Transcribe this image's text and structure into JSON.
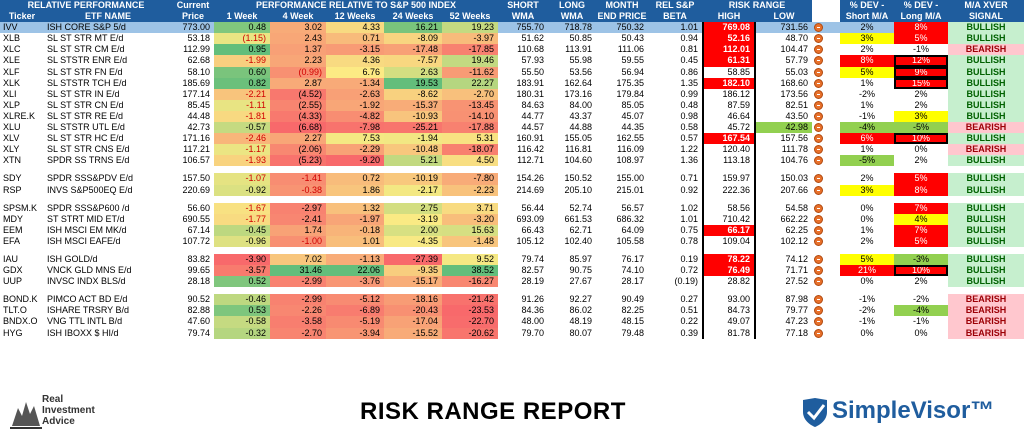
{
  "header": {
    "group1": "RELATIVE PERFORMANCE",
    "current": "Current",
    "perf_group": "PERFORMANCE RELATIVE TO S&P 500 INDEX",
    "short": "SHORT",
    "long": "LONG",
    "month": "MONTH",
    "rel_sp": "REL S&P",
    "risk_range": "RISK RANGE",
    "dev_short": "% DEV -",
    "dev_long": "% DEV -",
    "ma_xver": "M/A XVER",
    "ticker": "Ticker",
    "etf_name": "ETF NAME",
    "price": "Price",
    "w1": "1 Week",
    "w4": "4 Week",
    "w12": "12 Weeks",
    "w24": "24 Weeks",
    "w52": "52 Weeks",
    "wma_s": "WMA",
    "wma_l": "WMA",
    "end_price": "END PRICE",
    "beta": "BETA",
    "high": "HIGH",
    "low": "LOW",
    "short_ma": "Short M/A",
    "long_ma": "Long M/A",
    "signal": "SIGNAL"
  },
  "colors": {
    "header_blue": "#1f5d9e",
    "bull_bg": "#c6efce",
    "bear_bg": "#ffc7ce",
    "red_cell": "#ff0000",
    "yellow_cell": "#ffff00"
  },
  "rows": [
    {
      "t": "IVV",
      "n": "ISH CORE S&P 5/d",
      "p": "773.00",
      "w1": "0.48",
      "w4": "3.02",
      "w12": "4.33",
      "w24": "16.21",
      "w52": "19.23",
      "s": "755.70",
      "l": "718.78",
      "m": "750.32",
      "b": "1.01",
      "hi": "769.08",
      "lo": "731.56",
      "ds": "2%",
      "dl": "8%",
      "sig": "BULLISH"
    },
    {
      "t": "XLB",
      "n": "SL ST STR MT E/d",
      "p": "53.18",
      "w1": "(1.15)",
      "w4": "2.43",
      "w12": "0.71",
      "w24": "-8.09",
      "w52": "-3.97",
      "s": "51.62",
      "l": "50.85",
      "m": "50.43",
      "b": "0.94",
      "hi": "52.16",
      "lo": "48.70",
      "ds": "3%",
      "dl": "5%",
      "sig": "BULLISH"
    },
    {
      "t": "XLC",
      "n": "SL ST STR CM E/d",
      "p": "112.99",
      "w1": "0.95",
      "w4": "1.37",
      "w12": "-3.15",
      "w24": "-17.48",
      "w52": "-17.85",
      "s": "110.68",
      "l": "113.91",
      "m": "111.06",
      "b": "0.81",
      "hi": "112.01",
      "lo": "104.47",
      "ds": "2%",
      "dl": "-1%",
      "sig": "BEARISH"
    },
    {
      "t": "XLE",
      "n": "SL STSTR ENR E/d",
      "p": "62.68",
      "w1": "-1.99",
      "w4": "2.23",
      "w12": "4.36",
      "w24": "-7.57",
      "w52": "19.46",
      "s": "57.93",
      "l": "55.98",
      "m": "59.55",
      "b": "0.45",
      "hi": "61.31",
      "lo": "57.79",
      "ds": "8%",
      "dl": "12%",
      "sig": "BULLISH"
    },
    {
      "t": "XLF",
      "n": "SL ST STR FN E/d",
      "p": "58.10",
      "w1": "0.60",
      "w4": "(0.99)",
      "w12": "6.76",
      "w24": "2.63",
      "w52": "-11.62",
      "s": "55.50",
      "l": "53.56",
      "m": "56.94",
      "b": "0.86",
      "hi": "58.85",
      "lo": "55.03",
      "ds": "5%",
      "dl": "9%",
      "sig": "BULLISH"
    },
    {
      "t": "XLK",
      "n": "SL STSTR TCH E/d",
      "p": "185.69",
      "w1": "0.82",
      "w4": "2.87",
      "w12": "-1.34",
      "w24": "19.53",
      "w52": "22.27",
      "s": "183.91",
      "l": "162.64",
      "m": "175.35",
      "b": "1.35",
      "hi": "182.10",
      "lo": "168.60",
      "ds": "1%",
      "dl": "15%",
      "sig": "BULLISH"
    },
    {
      "t": "XLI",
      "n": "SL ST STR IN E/d",
      "p": "177.14",
      "w1": "-2.21",
      "w4": "(4.52)",
      "w12": "-2.63",
      "w24": "-8.62",
      "w52": "-2.70",
      "s": "180.31",
      "l": "173.16",
      "m": "179.84",
      "b": "0.99",
      "hi": "186.12",
      "lo": "173.56",
      "ds": "-2%",
      "dl": "2%",
      "sig": "BULLISH"
    },
    {
      "t": "XLP",
      "n": "SL ST STR CN E/d",
      "p": "85.45",
      "w1": "-1.11",
      "w4": "(2.55)",
      "w12": "-1.92",
      "w24": "-15.37",
      "w52": "-13.45",
      "s": "84.63",
      "l": "84.00",
      "m": "85.05",
      "b": "0.48",
      "hi": "87.59",
      "lo": "82.51",
      "ds": "1%",
      "dl": "2%",
      "sig": "BULLISH"
    },
    {
      "t": "XLRE.K",
      "n": "SL ST STR RE E/d",
      "p": "44.48",
      "w1": "-1.81",
      "w4": "(4.33)",
      "w12": "-4.82",
      "w24": "-10.93",
      "w52": "-14.10",
      "s": "44.77",
      "l": "43.37",
      "m": "45.07",
      "b": "0.98",
      "hi": "46.64",
      "lo": "43.50",
      "ds": "-1%",
      "dl": "3%",
      "sig": "BULLISH"
    },
    {
      "t": "XLU",
      "n": "SL STSTR UTL E/d",
      "p": "42.73",
      "w1": "-0.57",
      "w4": "(6.68)",
      "w12": "-7.98",
      "w24": "-25.21",
      "w52": "-17.88",
      "s": "44.57",
      "l": "44.88",
      "m": "44.35",
      "b": "0.58",
      "hi": "45.72",
      "lo": "42.98",
      "ds": "-4%",
      "dl": "-5%",
      "sig": "BEARISH"
    },
    {
      "t": "XLV",
      "n": "SL ST STR HC E/d",
      "p": "171.16",
      "w1": "-2.46",
      "w4": "2.27",
      "w12": "7.53",
      "w24": "-1.94",
      "w52": "5.31",
      "s": "160.91",
      "l": "155.05",
      "m": "162.55",
      "b": "0.57",
      "hi": "167.54",
      "lo": "157.56",
      "ds": "6%",
      "dl": "10%",
      "sig": "BULLISH"
    },
    {
      "t": "XLY",
      "n": "SL ST STR CNS E/d",
      "p": "117.21",
      "w1": "-1.17",
      "w4": "(2.06)",
      "w12": "-2.29",
      "w24": "-10.48",
      "w52": "-18.07",
      "s": "116.42",
      "l": "116.81",
      "m": "116.09",
      "b": "1.22",
      "hi": "120.40",
      "lo": "111.78",
      "ds": "1%",
      "dl": "0%",
      "sig": "BEARISH"
    },
    {
      "t": "XTN",
      "n": "SPDR SS TRNS E/d",
      "p": "106.57",
      "w1": "-1.93",
      "w4": "(5.23)",
      "w12": "-9.20",
      "w24": "5.21",
      "w52": "4.50",
      "s": "112.71",
      "l": "104.60",
      "m": "108.97",
      "b": "1.36",
      "hi": "113.18",
      "lo": "104.76",
      "ds": "-5%",
      "dl": "2%",
      "sig": "BULLISH"
    },
    {
      "gap": true
    },
    {
      "t": "SDY",
      "n": "SPDR SSS&PDV E/d",
      "p": "157.50",
      "w1": "-1.07",
      "w4": "-1.41",
      "w12": "0.72",
      "w24": "-10.19",
      "w52": "-7.80",
      "s": "154.26",
      "l": "150.52",
      "m": "155.00",
      "b": "0.71",
      "hi": "159.97",
      "lo": "150.03",
      "ds": "2%",
      "dl": "5%",
      "sig": "BULLISH"
    },
    {
      "t": "RSP",
      "n": "INVS S&P500EQ E/d",
      "p": "220.69",
      "w1": "-0.92",
      "w4": "-0.38",
      "w12": "1.86",
      "w24": "-2.17",
      "w52": "-2.23",
      "s": "214.69",
      "l": "205.10",
      "m": "215.01",
      "b": "0.92",
      "hi": "222.36",
      "lo": "207.66",
      "ds": "3%",
      "dl": "8%",
      "sig": "BULLISH"
    },
    {
      "gap": true
    },
    {
      "t": "SPSM.K",
      "n": "SPDR SSS&P600 /d",
      "p": "56.60",
      "w1": "-1.67",
      "w4": "-2.97",
      "w12": "1.32",
      "w24": "2.75",
      "w52": "3.71",
      "s": "56.44",
      "l": "52.74",
      "m": "56.57",
      "b": "1.02",
      "hi": "58.56",
      "lo": "54.58",
      "ds": "0%",
      "dl": "7%",
      "sig": "BULLISH"
    },
    {
      "t": "MDY",
      "n": "ST STRT MID ET/d",
      "p": "690.55",
      "w1": "-1.77",
      "w4": "-2.41",
      "w12": "-1.97",
      "w24": "-3.19",
      "w52": "-3.20",
      "s": "693.09",
      "l": "661.53",
      "m": "686.32",
      "b": "1.01",
      "hi": "710.42",
      "lo": "662.22",
      "ds": "0%",
      "dl": "4%",
      "sig": "BULLISH"
    },
    {
      "t": "EEM",
      "n": "ISH MSCI EM MK/d",
      "p": "67.14",
      "w1": "-0.45",
      "w4": "1.74",
      "w12": "-0.18",
      "w24": "2.00",
      "w52": "15.63",
      "s": "66.43",
      "l": "62.71",
      "m": "64.09",
      "b": "0.75",
      "hi": "66.17",
      "lo": "62.25",
      "ds": "1%",
      "dl": "7%",
      "sig": "BULLISH"
    },
    {
      "t": "EFA",
      "n": "ISH MSCI EAFE/d",
      "p": "107.72",
      "w1": "-0.96",
      "w4": "-1.00",
      "w12": "1.01",
      "w24": "-4.35",
      "w52": "-1.48",
      "s": "105.12",
      "l": "102.40",
      "m": "105.58",
      "b": "0.78",
      "hi": "109.04",
      "lo": "102.12",
      "ds": "2%",
      "dl": "5%",
      "sig": "BULLISH"
    },
    {
      "gap": true
    },
    {
      "t": "IAU",
      "n": "ISH GOLD/d",
      "p": "83.82",
      "w1": "-3.90",
      "w4": "7.02",
      "w12": "-1.13",
      "w24": "-27.39",
      "w52": "9.52",
      "s": "79.74",
      "l": "85.97",
      "m": "76.17",
      "b": "0.19",
      "hi": "78.22",
      "lo": "74.12",
      "ds": "5%",
      "dl": "-3%",
      "sig": "BULLISH"
    },
    {
      "t": "GDX",
      "n": "VNCK GLD MNS E/d",
      "p": "99.65",
      "w1": "-3.57",
      "w4": "31.46",
      "w12": "22.06",
      "w24": "-9.35",
      "w52": "38.52",
      "s": "82.57",
      "l": "90.75",
      "m": "74.10",
      "b": "0.72",
      "hi": "76.49",
      "lo": "71.71",
      "ds": "21%",
      "dl": "10%",
      "sig": "BULLISH"
    },
    {
      "t": "UUP",
      "n": "INVSC INDX BLS/d",
      "p": "28.18",
      "w1": "0.52",
      "w4": "-2.99",
      "w12": "-3.76",
      "w24": "-15.17",
      "w52": "-16.27",
      "s": "28.19",
      "l": "27.67",
      "m": "28.17",
      "b": "(0.19)",
      "hi": "28.82",
      "lo": "27.52",
      "ds": "0%",
      "dl": "2%",
      "sig": "BULLISH"
    },
    {
      "gap": true
    },
    {
      "t": "BOND.K",
      "n": "PIMCO ACT BD E/d",
      "p": "90.52",
      "w1": "-0.46",
      "w4": "-2.99",
      "w12": "-5.12",
      "w24": "-18.16",
      "w52": "-21.42",
      "s": "91.26",
      "l": "92.27",
      "m": "90.49",
      "b": "0.27",
      "hi": "93.00",
      "lo": "87.98",
      "ds": "-1%",
      "dl": "-2%",
      "sig": "BEARISH"
    },
    {
      "t": "TLT.O",
      "n": "ISHARE TRSRY B/d",
      "p": "82.88",
      "w1": "0.53",
      "w4": "-2.26",
      "w12": "-6.89",
      "w24": "-20.43",
      "w52": "-23.53",
      "s": "84.36",
      "l": "86.02",
      "m": "82.25",
      "b": "0.51",
      "hi": "84.73",
      "lo": "79.77",
      "ds": "-2%",
      "dl": "-4%",
      "sig": "BEARISH"
    },
    {
      "t": "BNDX.O",
      "n": "VNG TTL INTL B/d",
      "p": "47.60",
      "w1": "-0.58",
      "w4": "-3.58",
      "w12": "-5.19",
      "w24": "-17.04",
      "w52": "-22.70",
      "s": "48.00",
      "l": "48.19",
      "m": "48.15",
      "b": "0.22",
      "hi": "49.07",
      "lo": "47.23",
      "ds": "-1%",
      "dl": "-1%",
      "sig": "BEARISH"
    },
    {
      "t": "HYG",
      "n": "ISH IBOXX $ HI/d",
      "p": "79.74",
      "w1": "-0.32",
      "w4": "-2.70",
      "w12": "-3.94",
      "w24": "-15.52",
      "w52": "-20.62",
      "s": "79.70",
      "l": "80.07",
      "m": "79.48",
      "b": "0.39",
      "hi": "81.78",
      "lo": "77.18",
      "ds": "0%",
      "dl": "0%",
      "sig": "BEARISH"
    }
  ],
  "footer": {
    "title": "RISK RANGE REPORT",
    "ria_line1": "Real",
    "ria_line2": "Investment",
    "ria_line3": "Advice",
    "sv_brand": "SimpleVisor™"
  }
}
